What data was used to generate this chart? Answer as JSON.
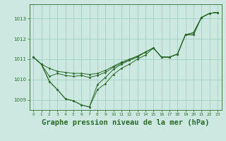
{
  "bg_color": "#cce8e0",
  "line_color": "#2d6a2d",
  "grid_color": "#99ccbb",
  "title": "Graphe pression niveau de la mer (hPa)",
  "title_fontsize": 7.5,
  "ylim": [
    1008.5,
    1013.7
  ],
  "xlim": [
    -0.5,
    23.5
  ],
  "yticks": [
    1009,
    1010,
    1011,
    1012,
    1013
  ],
  "xticks": [
    0,
    1,
    2,
    3,
    4,
    5,
    6,
    7,
    8,
    9,
    10,
    11,
    12,
    13,
    14,
    15,
    16,
    17,
    18,
    19,
    20,
    21,
    22,
    23
  ],
  "series": [
    [
      1011.1,
      1010.75,
      1010.55,
      1010.4,
      1010.35,
      1010.3,
      1010.3,
      1010.25,
      1010.3,
      1010.45,
      1010.65,
      1010.85,
      1011.0,
      1011.15,
      1011.35,
      1011.55,
      1011.1,
      1011.1,
      1011.25,
      1012.2,
      1012.2,
      1013.05,
      1013.25,
      1013.3
    ],
    [
      1011.1,
      1010.75,
      1009.9,
      1009.5,
      1009.05,
      1008.95,
      1008.75,
      1008.65,
      1009.5,
      1009.8,
      1010.25,
      1010.55,
      1010.75,
      1011.0,
      1011.2,
      1011.55,
      1011.1,
      1011.1,
      1011.25,
      1012.2,
      1012.3,
      1013.05,
      1013.25,
      1013.3
    ],
    [
      1011.1,
      1010.75,
      1010.15,
      1010.3,
      1010.2,
      1010.15,
      1010.2,
      1010.1,
      1010.2,
      1010.35,
      1010.6,
      1010.8,
      1010.95,
      1011.1,
      1011.35,
      1011.55,
      1011.1,
      1011.1,
      1011.25,
      1012.2,
      1012.2,
      1013.05,
      1013.25,
      1013.3
    ],
    [
      1011.1,
      1010.75,
      1009.9,
      1009.5,
      1009.05,
      1008.95,
      1008.75,
      1008.65,
      1009.75,
      1010.1,
      1010.5,
      1010.75,
      1010.95,
      1011.15,
      1011.35,
      1011.55,
      1011.1,
      1011.1,
      1011.25,
      1012.2,
      1012.3,
      1013.05,
      1013.25,
      1013.3
    ]
  ]
}
